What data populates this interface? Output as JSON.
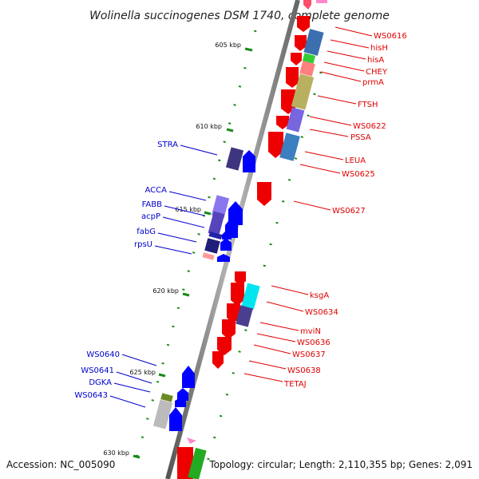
{
  "title": "Wolinella succinogenes DSM 1740, complete genome",
  "footer": {
    "accession": "Accession: NC_005090",
    "summary": "Topology: circular; Length: 2,110,355 bp; Genes: 2,091"
  },
  "colors": {
    "backbone": "#888888",
    "forward_label": "#e00000",
    "reverse_label": "#0000cc",
    "tick": "#1a8a1a",
    "forward_gene": "#ff0000",
    "reverse_gene": "#0000ff"
  },
  "scale_labels": [
    "605 kbp",
    "610 kbp",
    "615 kbp",
    "620 kbp",
    "625 kbp",
    "630 kbp"
  ],
  "forward_labels": [
    "WS0616",
    "hisH",
    "hisA",
    "CHEY",
    "prmA",
    "FTSH",
    "WS0622",
    "PSSA",
    "LEUA",
    "WS0625",
    "WS0627",
    "ksgA",
    "WS0634",
    "mviN",
    "WS0636",
    "WS0637",
    "WS0638",
    "TETAJ"
  ],
  "reverse_labels": [
    "STRA",
    "ACCA",
    "FABB",
    "acpP",
    "fabG",
    "rpsU",
    "WS0640",
    "WS0641",
    "DGKA",
    "WS0643"
  ]
}
